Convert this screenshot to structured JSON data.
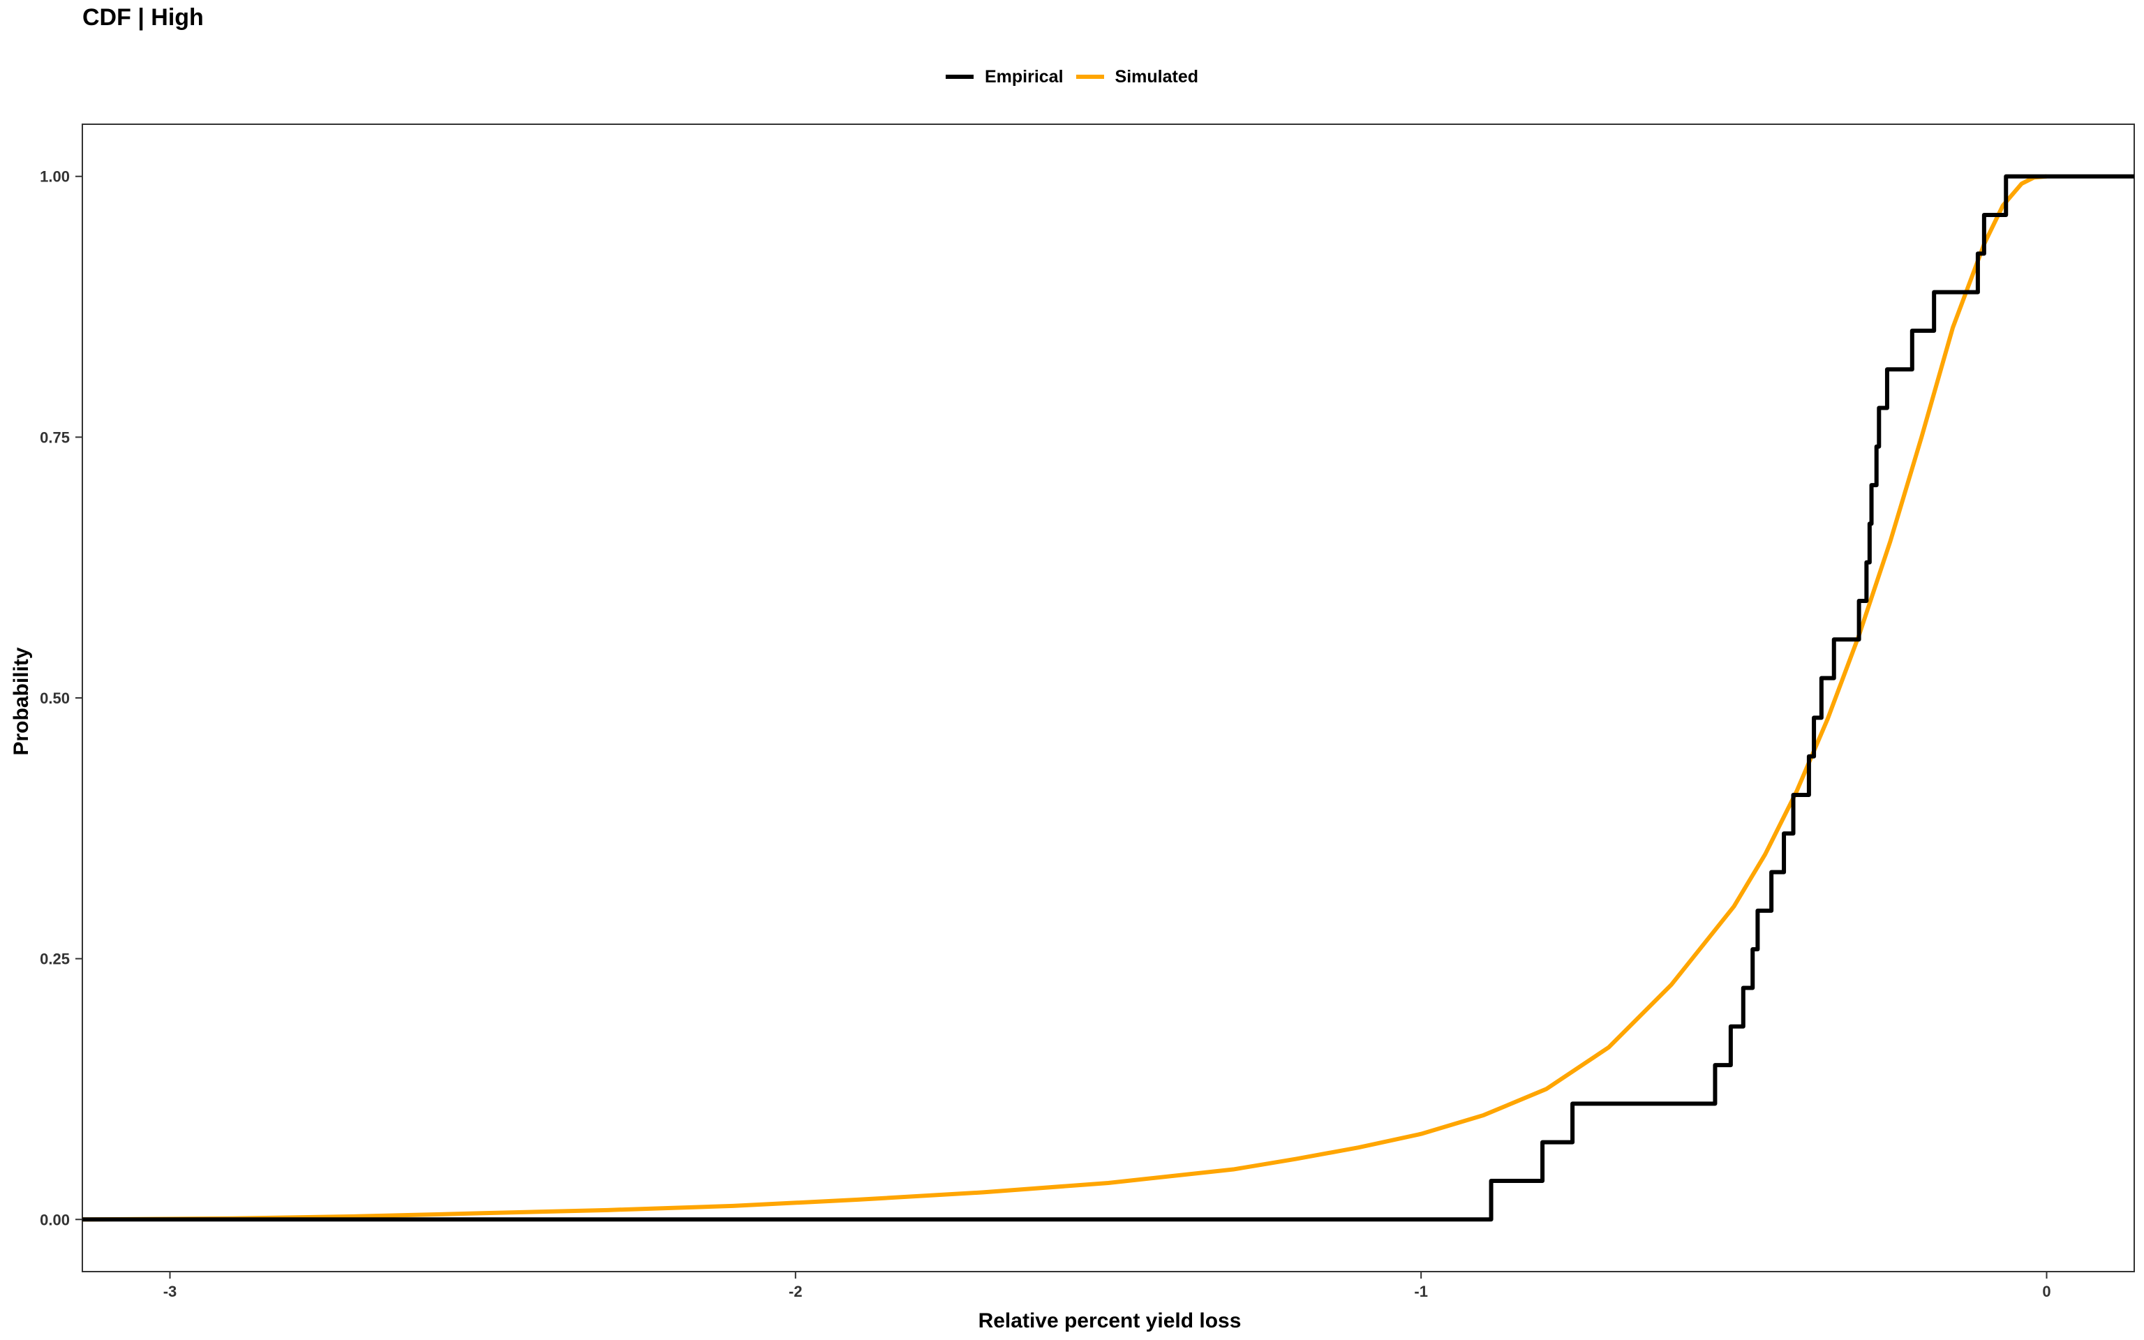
{
  "chart_data": {
    "type": "line",
    "title": "CDF | High",
    "xlabel": "Relative percent yield loss",
    "ylabel": "Probability",
    "xlim": [
      -3.14,
      0.14
    ],
    "ylim": [
      -0.05,
      1.05
    ],
    "x_ticks": [
      -3,
      -2,
      -1,
      0
    ],
    "x_tick_labels": [
      "-3",
      "-2",
      "-1",
      "0"
    ],
    "y_ticks": [
      0,
      0.25,
      0.5,
      0.75,
      1.0
    ],
    "y_tick_labels": [
      "0.00",
      "0.25",
      "0.50",
      "0.75",
      "1.00"
    ],
    "grid": false,
    "legend_position": "top",
    "series": [
      {
        "name": "Empirical",
        "color": "#000000",
        "step": true,
        "x": [
          -3.14,
          -0.888,
          -0.806,
          -0.758,
          -0.53,
          -0.505,
          -0.485,
          -0.47,
          -0.462,
          -0.44,
          -0.42,
          -0.405,
          -0.38,
          -0.372,
          -0.36,
          -0.34,
          -0.3,
          -0.288,
          -0.283,
          -0.28,
          -0.272,
          -0.268,
          -0.255,
          -0.215,
          -0.18,
          -0.11,
          -0.1,
          -0.065,
          -0.045,
          -0.03,
          -0.01,
          0.14
        ],
        "y": [
          0.0,
          0.037,
          0.074,
          0.111,
          0.148,
          0.185,
          0.222,
          0.259,
          0.296,
          0.333,
          0.37,
          0.407,
          0.444,
          0.481,
          0.519,
          0.556,
          0.593,
          0.63,
          0.667,
          0.704,
          0.741,
          0.778,
          0.815,
          0.852,
          0.889,
          0.926,
          0.963,
          1.0,
          1.0,
          1.0,
          1.0,
          1.0
        ]
      },
      {
        "name": "Simulated",
        "color": "#FFA500",
        "step": false,
        "x": [
          -3.14,
          -2.9,
          -2.7,
          -2.5,
          -2.3,
          -2.1,
          -1.9,
          -1.7,
          -1.5,
          -1.3,
          -1.2,
          -1.1,
          -1.0,
          -0.9,
          -0.8,
          -0.7,
          -0.6,
          -0.5,
          -0.45,
          -0.4,
          -0.35,
          -0.3,
          -0.25,
          -0.2,
          -0.15,
          -0.1,
          -0.07,
          -0.04,
          -0.02,
          0.0
        ],
        "y": [
          0.0,
          0.001,
          0.003,
          0.006,
          0.009,
          0.013,
          0.019,
          0.026,
          0.035,
          0.048,
          0.058,
          0.069,
          0.082,
          0.1,
          0.125,
          0.165,
          0.225,
          0.3,
          0.35,
          0.41,
          0.48,
          0.56,
          0.65,
          0.75,
          0.855,
          0.935,
          0.972,
          0.993,
          0.999,
          1.0
        ]
      }
    ]
  }
}
